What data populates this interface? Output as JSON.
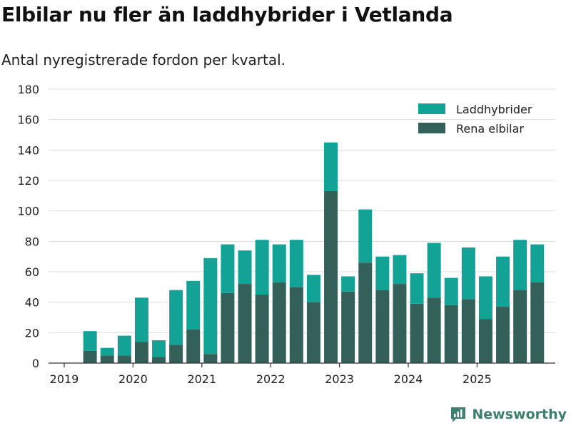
{
  "header": {
    "title": "Elbilar nu fler än laddhybrider i Vetlanda",
    "subtitle": "Antal nyregistrerade fordon per kvartal."
  },
  "branding": {
    "name": "Newsworthy",
    "icon": "newsworthy-logo-icon",
    "color": "#3f7f6e"
  },
  "chart_data": {
    "type": "bar",
    "stacked": true,
    "title": "Elbilar nu fler än laddhybrider i Vetlanda",
    "subtitle": "Antal nyregistrerade fordon per kvartal.",
    "xlabel": "",
    "ylabel": "",
    "ylim": [
      0,
      180
    ],
    "yticks": [
      0,
      20,
      40,
      60,
      80,
      100,
      120,
      140,
      160,
      180
    ],
    "xticks": [
      "2019",
      "2020",
      "2021",
      "2022",
      "2023",
      "2024",
      "2025"
    ],
    "grid": true,
    "legend_position": "top-right",
    "categories": [
      "2019 Q2",
      "2019 Q3",
      "2019 Q4",
      "2020 Q1",
      "2020 Q2",
      "2020 Q3",
      "2020 Q4",
      "2021 Q1",
      "2021 Q2",
      "2021 Q3",
      "2021 Q4",
      "2022 Q1",
      "2022 Q2",
      "2022 Q3",
      "2022 Q4",
      "2023 Q1",
      "2023 Q2",
      "2023 Q3",
      "2023 Q4",
      "2024 Q1",
      "2024 Q2",
      "2024 Q3",
      "2024 Q4",
      "2025 Q1",
      "2025 Q2",
      "2025 Q3",
      "2025 Q4"
    ],
    "series": [
      {
        "name": "Rena elbilar",
        "color": "#34605a",
        "values": [
          8,
          5,
          5,
          14,
          4,
          12,
          22,
          6,
          46,
          52,
          45,
          53,
          50,
          40,
          113,
          47,
          66,
          48,
          52,
          39,
          43,
          38,
          42,
          29,
          37,
          48,
          53
        ]
      },
      {
        "name": "Laddhybrider",
        "color": "#12a396",
        "values": [
          13,
          5,
          13,
          29,
          11,
          36,
          32,
          63,
          32,
          22,
          36,
          25,
          31,
          18,
          32,
          10,
          35,
          22,
          19,
          20,
          36,
          18,
          34,
          28,
          33,
          33,
          25
        ]
      }
    ]
  }
}
